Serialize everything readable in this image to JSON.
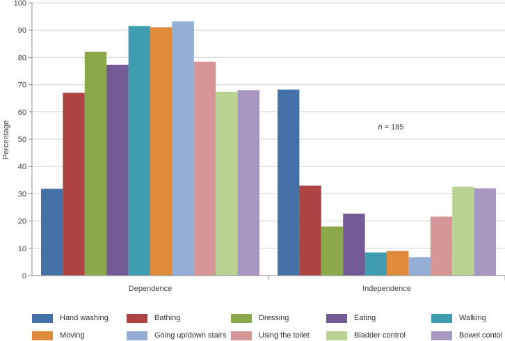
{
  "chart_data": {
    "type": "bar",
    "categories": [
      "Dependence",
      "Independence"
    ],
    "ylabel": "Percentage",
    "xlabel": "",
    "ylim": [
      0,
      100
    ],
    "yticks": [
      0,
      10,
      20,
      30,
      40,
      50,
      60,
      70,
      80,
      90,
      100
    ],
    "grid": true,
    "legend_position": "bottom",
    "annotation": {
      "italic": "n",
      "text": " = 185"
    },
    "series": [
      {
        "name": "Hand washing",
        "color": "#4472a8",
        "values": [
          31.8,
          68.2
        ]
      },
      {
        "name": "Bathing",
        "color": "#ac4444",
        "values": [
          67,
          33
        ]
      },
      {
        "name": "Dressing",
        "color": "#8aa84a",
        "values": [
          82,
          18
        ]
      },
      {
        "name": "Eating",
        "color": "#735a94",
        "values": [
          77.3,
          22.7
        ]
      },
      {
        "name": "Walking",
        "color": "#3f9db0",
        "values": [
          91.5,
          8.5
        ]
      },
      {
        "name": "Moving",
        "color": "#e08a3c",
        "values": [
          91,
          9
        ]
      },
      {
        "name": "Going up/down stairs",
        "color": "#94aed6",
        "values": [
          93.2,
          6.8
        ]
      },
      {
        "name": "Using the toilet",
        "color": "#d69696",
        "values": [
          78.4,
          21.6
        ]
      },
      {
        "name": "Bladder control",
        "color": "#bad393",
        "values": [
          67.4,
          32.6
        ]
      },
      {
        "name": "Bowel contol",
        "color": "#a898c0",
        "values": [
          68,
          32
        ]
      }
    ]
  }
}
